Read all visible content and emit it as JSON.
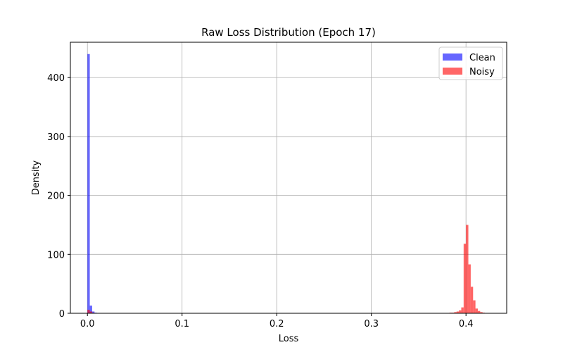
{
  "chart_data": {
    "type": "bar",
    "title": "Raw Loss Distribution (Epoch 17)",
    "xlabel": "Loss",
    "ylabel": "Density",
    "xlim": [
      -0.018,
      0.443
    ],
    "ylim": [
      0,
      460
    ],
    "xticks": [
      0.0,
      0.1,
      0.2,
      0.3,
      0.4
    ],
    "xtick_labels": [
      "0.0",
      "0.1",
      "0.2",
      "0.3",
      "0.4"
    ],
    "yticks": [
      0,
      100,
      200,
      300,
      400
    ],
    "ytick_labels": [
      "0",
      "100",
      "200",
      "300",
      "400"
    ],
    "grid": true,
    "legend": {
      "position": "upper right"
    },
    "bin_width": 0.0025,
    "series": [
      {
        "name": "Clean",
        "color": "#0000ff",
        "alpha": 0.6,
        "bins": [
          {
            "x": 0.0,
            "value": 440
          },
          {
            "x": 0.0025,
            "value": 13
          },
          {
            "x": 0.005,
            "value": 3
          },
          {
            "x": 0.0075,
            "value": 1
          }
        ]
      },
      {
        "name": "Noisy",
        "color": "#ff0000",
        "alpha": 0.6,
        "bins": [
          {
            "x": 0.0,
            "value": 6
          },
          {
            "x": 0.0025,
            "value": 3
          },
          {
            "x": 0.005,
            "value": 1
          },
          {
            "x": 0.3825,
            "value": 1
          },
          {
            "x": 0.385,
            "value": 1
          },
          {
            "x": 0.3875,
            "value": 2
          },
          {
            "x": 0.39,
            "value": 3
          },
          {
            "x": 0.3925,
            "value": 5
          },
          {
            "x": 0.395,
            "value": 10
          },
          {
            "x": 0.3975,
            "value": 118
          },
          {
            "x": 0.4,
            "value": 150
          },
          {
            "x": 0.4025,
            "value": 83
          },
          {
            "x": 0.405,
            "value": 45
          },
          {
            "x": 0.4075,
            "value": 22
          },
          {
            "x": 0.41,
            "value": 8
          },
          {
            "x": 0.4125,
            "value": 4
          },
          {
            "x": 0.415,
            "value": 2
          },
          {
            "x": 0.4175,
            "value": 1
          }
        ]
      }
    ]
  }
}
